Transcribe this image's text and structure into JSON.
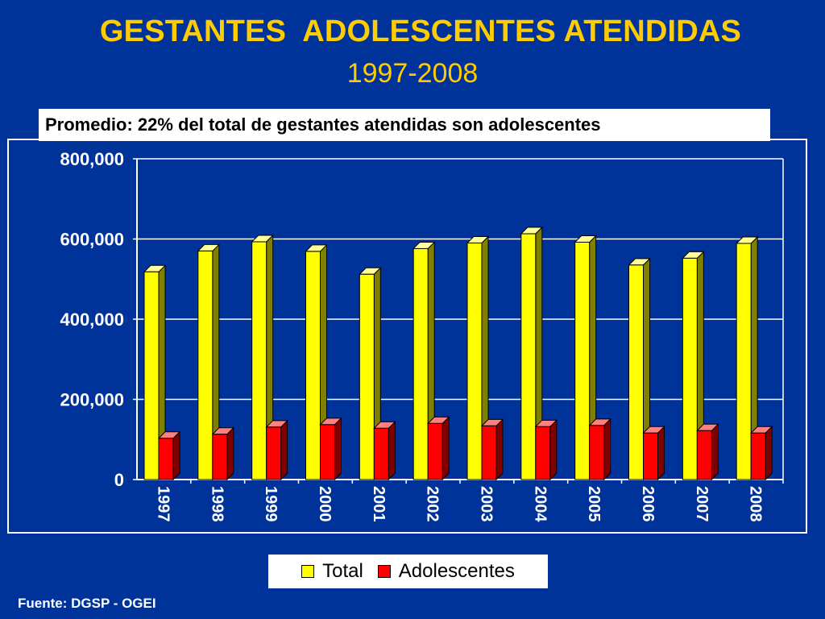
{
  "title": "GESTANTES  ADOLESCENTES ATENDIDAS",
  "subtitle": "1997-2008",
  "note": "Promedio: 22% del total de gestantes atendidas son adolescentes",
  "source": "Fuente: DGSP - OGEI",
  "colors": {
    "background": "#003399",
    "title": "#FFCC00",
    "total": "#FFFF00",
    "adolescentes": "#FF0000"
  },
  "chart_data": {
    "type": "bar",
    "categories": [
      "1997",
      "1998",
      "1999",
      "2000",
      "2001",
      "2002",
      "2003",
      "2004",
      "2005",
      "2006",
      "2007",
      "2008"
    ],
    "series": [
      {
        "name": "Total",
        "values": [
          518000,
          570000,
          593000,
          569000,
          512000,
          576000,
          590000,
          613000,
          592000,
          535000,
          552000,
          589000
        ]
      },
      {
        "name": "Adolescentes",
        "values": [
          103000,
          113000,
          131000,
          137000,
          128000,
          140000,
          134000,
          132000,
          135000,
          116000,
          122000,
          116000
        ]
      }
    ],
    "yticks": [
      "0",
      "200,000",
      "400,000",
      "600,000",
      "800,000"
    ],
    "ylim": [
      0,
      800000
    ],
    "grid": true,
    "legend_position": "bottom"
  }
}
